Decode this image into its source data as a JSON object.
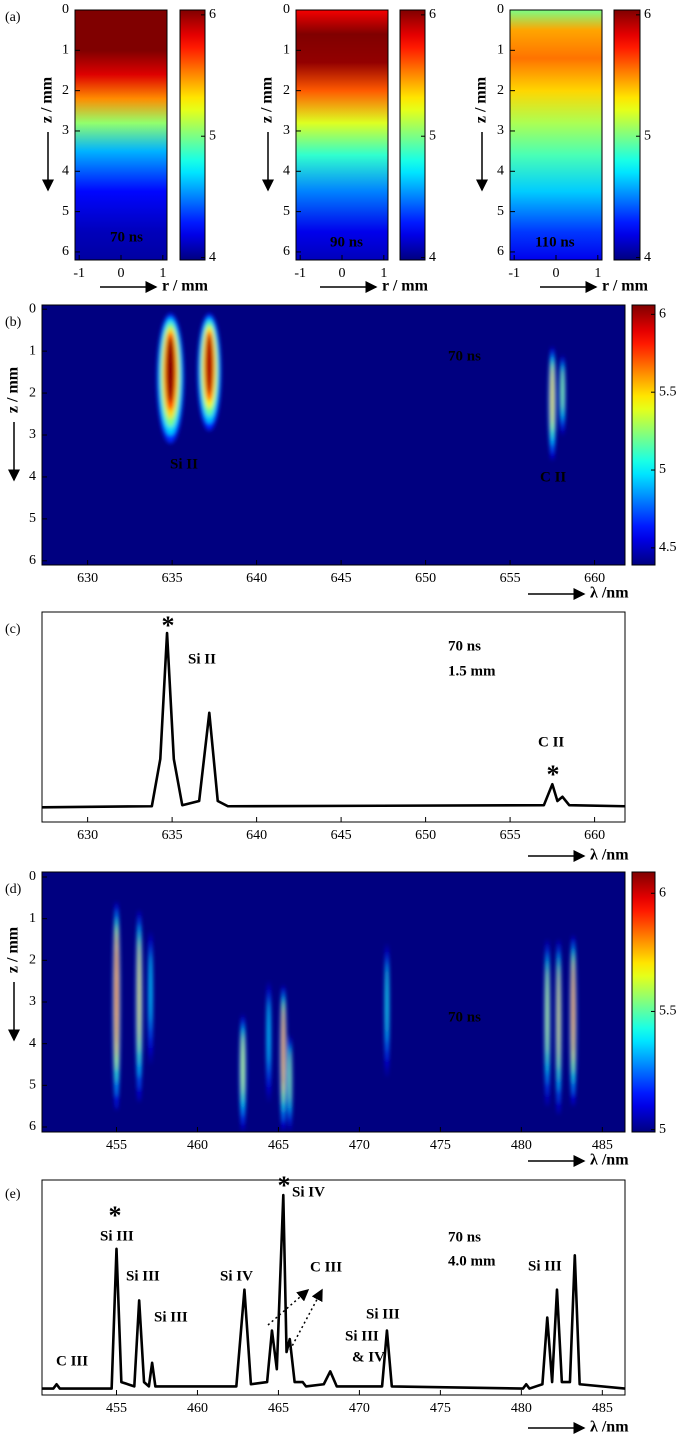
{
  "chart_data": [
    {
      "type": "heatmap-profile",
      "panel_label": "(a)",
      "annotations": [
        "70 ns"
      ],
      "xlabel": "r / mm",
      "ylabel": "z / mm",
      "xlim": [
        -1.1,
        1.1
      ],
      "xticks": [
        -1,
        0,
        1
      ],
      "ylim": [
        0,
        6.2
      ],
      "yticks": [
        0,
        1,
        2,
        3,
        4,
        5,
        6
      ],
      "y_reversed": true,
      "clim": [
        3.98,
        6.04
      ],
      "cticks": [
        4,
        5,
        6
      ],
      "z": [
        0,
        1,
        1.6,
        2.2,
        2.8,
        3.5,
        4.5,
        5.5,
        6.2
      ],
      "values": [
        6.04,
        6.04,
        5.85,
        5.5,
        5.05,
        4.6,
        4.25,
        4.1,
        4.05
      ]
    },
    {
      "type": "heatmap-profile",
      "annotations": [
        "90 ns"
      ],
      "xlabel": "r / mm",
      "ylabel": "z / mm",
      "xlim": [
        -1.1,
        1.1
      ],
      "xticks": [
        -1,
        0,
        1
      ],
      "ylim": [
        0,
        6.2
      ],
      "yticks": [
        0,
        1,
        2,
        3,
        4,
        5,
        6
      ],
      "y_reversed": true,
      "clim": [
        3.98,
        6.04
      ],
      "cticks": [
        4,
        5,
        6
      ],
      "z": [
        0,
        0.6,
        1.3,
        2,
        2.8,
        3.6,
        4.5,
        5.5,
        6.2
      ],
      "values": [
        5.8,
        6.04,
        6.0,
        5.6,
        5.2,
        4.85,
        4.5,
        4.2,
        4.1
      ]
    },
    {
      "type": "heatmap-profile",
      "annotations": [
        "110 ns"
      ],
      "xlabel": "r / mm",
      "ylabel": "z / mm",
      "xlim": [
        -1.1,
        1.1
      ],
      "xticks": [
        -1,
        0,
        1
      ],
      "ylim": [
        0,
        6.2
      ],
      "yticks": [
        0,
        1,
        2,
        3,
        4,
        5,
        6
      ],
      "y_reversed": true,
      "clim": [
        3.98,
        6.04
      ],
      "cticks": [
        4,
        5,
        6
      ],
      "z": [
        0,
        0.5,
        1.2,
        2,
        2.8,
        3.6,
        4.5,
        5.5,
        6.2
      ],
      "values": [
        5.0,
        5.45,
        5.55,
        5.35,
        5.1,
        4.9,
        4.65,
        4.35,
        4.2
      ]
    },
    {
      "type": "spectral-image",
      "panel_label": "(b)",
      "annotations": [
        "Si II",
        "C II",
        "70 ns"
      ],
      "xlabel": "λ /nm",
      "ylabel": "z / mm",
      "xlim": [
        627.3,
        661.8
      ],
      "xticks": [
        630,
        635,
        640,
        645,
        650,
        655,
        660
      ],
      "ylim": [
        -0.1,
        6.1
      ],
      "yticks": [
        0,
        1,
        2,
        3,
        4,
        5,
        6
      ],
      "y_reversed": true,
      "clim": [
        4.39,
        6.06
      ],
      "cticks": [
        4.5,
        5,
        5.5,
        6
      ],
      "lines": [
        {
          "center": 634.9,
          "z_range": [
            0.1,
            3.2
          ],
          "peak": 6.06,
          "width": 1.6
        },
        {
          "center": 637.2,
          "z_range": [
            0.1,
            2.9
          ],
          "peak": 6.0,
          "width": 1.4
        },
        {
          "center": 657.5,
          "z_range": [
            0.9,
            3.6
          ],
          "peak": 5.55,
          "width": 0.45
        },
        {
          "center": 658.1,
          "z_range": [
            1.1,
            3.0
          ],
          "peak": 5.3,
          "width": 0.35
        }
      ]
    },
    {
      "type": "line",
      "panel_label": "(c)",
      "annotations": [
        "Si II",
        "70 ns",
        "1.5 mm",
        "C II"
      ],
      "markers": [
        "*",
        "*"
      ],
      "marker_color": "#e8312f",
      "xlabel": "λ /nm",
      "color": "#000000",
      "xlim": [
        627.3,
        661.8
      ],
      "xticks": [
        630,
        635,
        640,
        645,
        650,
        655,
        660
      ],
      "ylim": [
        0,
        1
      ],
      "x": [
        627.3,
        633.8,
        634.3,
        634.7,
        635.1,
        635.6,
        636.6,
        637.2,
        637.7,
        638.3,
        657.0,
        657.5,
        657.8,
        658.1,
        658.5,
        661.8
      ],
      "values": [
        0.07,
        0.075,
        0.3,
        0.9,
        0.3,
        0.08,
        0.1,
        0.52,
        0.1,
        0.075,
        0.08,
        0.18,
        0.1,
        0.12,
        0.08,
        0.075
      ]
    },
    {
      "type": "spectral-image",
      "panel_label": "(d)",
      "annotations": [
        "70 ns"
      ],
      "xlabel": "λ /nm",
      "ylabel": "z / mm",
      "xlim": [
        450.4,
        486.4
      ],
      "xticks": [
        455,
        460,
        465,
        470,
        475,
        480,
        485
      ],
      "ylim": [
        -0.12,
        6.12
      ],
      "yticks": [
        0,
        1,
        2,
        3,
        4,
        5,
        6
      ],
      "y_reversed": true,
      "clim": [
        4.99,
        6.09
      ],
      "cticks": [
        5,
        5.5,
        6
      ],
      "lines": [
        {
          "center": 455.0,
          "z_range": [
            0.6,
            5.6
          ],
          "peak": 5.95,
          "width": 0.45
        },
        {
          "center": 456.4,
          "z_range": [
            0.8,
            5.4
          ],
          "peak": 5.75,
          "width": 0.4
        },
        {
          "center": 457.1,
          "z_range": [
            1.3,
            4.5
          ],
          "peak": 5.4,
          "width": 0.3
        },
        {
          "center": 462.8,
          "z_range": [
            3.3,
            6.1
          ],
          "peak": 5.65,
          "width": 0.4
        },
        {
          "center": 464.4,
          "z_range": [
            2.5,
            5.4
          ],
          "peak": 5.4,
          "width": 0.3
        },
        {
          "center": 465.3,
          "z_range": [
            2.6,
            6.1
          ],
          "peak": 5.9,
          "width": 0.4
        },
        {
          "center": 465.7,
          "z_range": [
            3.8,
            6.1
          ],
          "peak": 5.6,
          "width": 0.3
        },
        {
          "center": 471.7,
          "z_range": [
            1.6,
            4.8
          ],
          "peak": 5.45,
          "width": 0.3
        },
        {
          "center": 481.6,
          "z_range": [
            1.5,
            5.5
          ],
          "peak": 5.65,
          "width": 0.35
        },
        {
          "center": 482.3,
          "z_range": [
            1.5,
            5.7
          ],
          "peak": 5.75,
          "width": 0.35
        },
        {
          "center": 483.2,
          "z_range": [
            1.4,
            5.5
          ],
          "peak": 5.9,
          "width": 0.4
        }
      ]
    },
    {
      "type": "line",
      "panel_label": "(e)",
      "annotations": [
        "C III",
        "Si III",
        "Si III",
        "Si III",
        "Si IV",
        "Si IV",
        "C III",
        "Si III",
        "& IV",
        "Si III",
        "70 ns",
        "4.0 mm",
        "Si III"
      ],
      "markers": [
        "*",
        "*"
      ],
      "marker_color": "#e8312f",
      "xlabel": "λ /nm",
      "color": "#000000",
      "xlim": [
        450.4,
        486.4
      ],
      "xticks": [
        455,
        460,
        465,
        470,
        475,
        480,
        485
      ],
      "ylim": [
        0,
        1
      ],
      "x": [
        450.4,
        451.1,
        451.3,
        451.5,
        454.7,
        455.0,
        455.3,
        456.1,
        456.4,
        456.7,
        457.0,
        457.2,
        457.4,
        462.4,
        462.9,
        463.3,
        464.3,
        464.6,
        464.9,
        465.3,
        465.5,
        465.7,
        466.0,
        466.5,
        466.7,
        467.8,
        468.2,
        468.6,
        471.4,
        471.7,
        472.0,
        480.1,
        480.3,
        480.5,
        481.3,
        481.6,
        481.9,
        482.2,
        482.5,
        483.0,
        483.3,
        483.6,
        486.4
      ],
      "values": [
        0.03,
        0.03,
        0.05,
        0.03,
        0.03,
        0.68,
        0.06,
        0.04,
        0.44,
        0.06,
        0.04,
        0.15,
        0.04,
        0.04,
        0.49,
        0.05,
        0.06,
        0.3,
        0.12,
        0.93,
        0.2,
        0.26,
        0.06,
        0.06,
        0.04,
        0.05,
        0.11,
        0.04,
        0.04,
        0.3,
        0.04,
        0.03,
        0.05,
        0.03,
        0.05,
        0.36,
        0.06,
        0.49,
        0.06,
        0.06,
        0.65,
        0.05,
        0.03
      ]
    }
  ]
}
